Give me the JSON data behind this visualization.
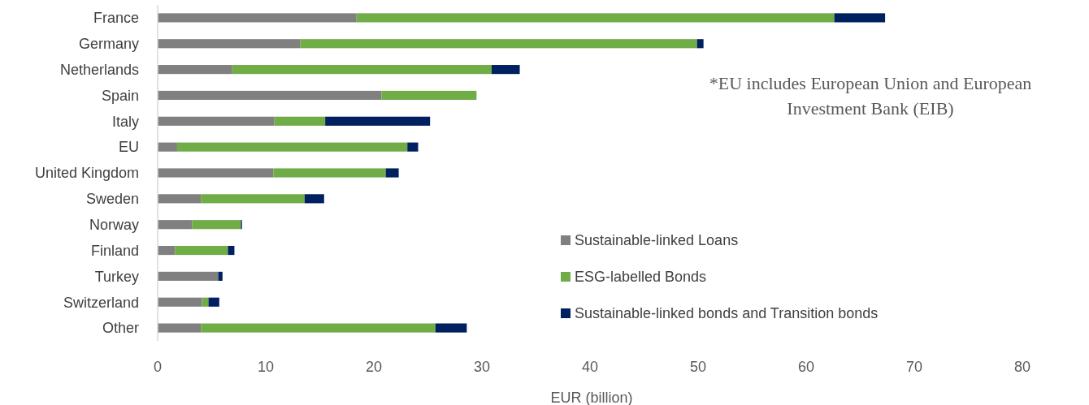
{
  "chart_data": {
    "type": "bar",
    "orientation": "horizontal",
    "stacked": true,
    "categories": [
      "France",
      "Germany",
      "Netherlands",
      "Spain",
      "Italy",
      "EU",
      "United Kingdom",
      "Sweden",
      "Norway",
      "Finland",
      "Turkey",
      "Switzerland",
      "Other"
    ],
    "series": [
      {
        "name": "Sustainable-linked Loans",
        "color": "#808080",
        "values": [
          18.4,
          13.2,
          6.9,
          20.7,
          10.8,
          1.8,
          10.7,
          4.0,
          3.2,
          1.6,
          5.6,
          4.1,
          4.0
        ]
      },
      {
        "name": "ESG-labelled Bonds",
        "color": "#70ad47",
        "values": [
          44.2,
          36.7,
          24.0,
          8.8,
          4.7,
          21.3,
          10.4,
          9.6,
          4.5,
          4.9,
          0,
          0.6,
          21.7
        ]
      },
      {
        "name": "Sustainable-linked bonds and Transition bonds",
        "color": "#002060",
        "values": [
          4.7,
          0.6,
          2.6,
          0,
          9.7,
          1.0,
          1.2,
          1.8,
          0.1,
          0.6,
          0.4,
          1.0,
          2.9
        ]
      }
    ],
    "xlim": [
      0,
      80
    ],
    "xticks": [
      0,
      10,
      20,
      30,
      40,
      50,
      60,
      70,
      80
    ],
    "xlabel": "EUR (billion)",
    "annotations": [
      "*EU includes European Union and European Investment Bank (EIB)"
    ],
    "legend": "bottom right",
    "grid": false
  }
}
